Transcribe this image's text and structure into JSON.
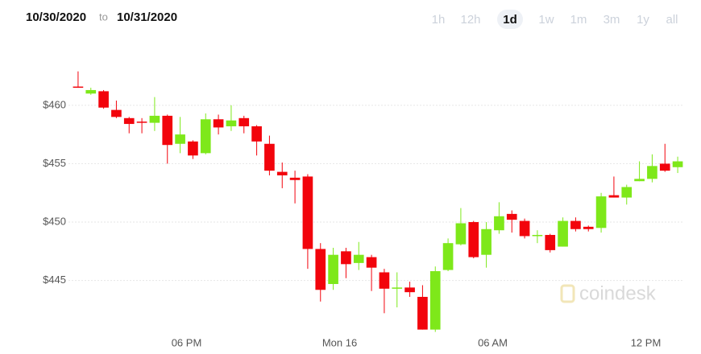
{
  "chart_data": {
    "type": "candlestick",
    "date_from": "10/30/2020",
    "date_sep": "to",
    "date_to": "10/31/2020",
    "ranges": [
      "1h",
      "12h",
      "1d",
      "1w",
      "1m",
      "3m",
      "1y",
      "all"
    ],
    "selected_range": "1d",
    "watermark": "coindesk",
    "up_color": "#7ee81a",
    "down_color": "#f2040c",
    "categories": [
      null,
      null,
      null,
      null,
      null,
      null,
      null,
      null,
      null,
      "06 PM",
      null,
      null,
      null,
      null,
      null,
      null,
      null,
      null,
      null,
      null,
      null,
      "Mon 16",
      null,
      null,
      null,
      null,
      null,
      null,
      null,
      null,
      null,
      null,
      null,
      "06 AM",
      null,
      null,
      null,
      null,
      null,
      null,
      null,
      null,
      null,
      null,
      null,
      "12 PM",
      null,
      null
    ],
    "open": [
      461.6,
      461.0,
      461.2,
      459.6,
      458.9,
      458.6,
      458.5,
      459.1,
      456.7,
      456.9,
      455.9,
      458.8,
      458.2,
      458.9,
      458.2,
      456.7,
      454.3,
      453.8,
      453.9,
      447.7,
      444.7,
      447.5,
      446.5,
      447.0,
      445.7,
      444.3,
      444.4,
      443.6,
      440.8,
      445.9,
      448.1,
      450.0,
      447.2,
      449.3,
      450.7,
      450.1,
      448.8,
      448.9,
      447.9,
      450.1,
      449.6,
      449.5,
      452.3,
      452.1,
      453.5,
      453.7,
      455.0,
      454.7
    ],
    "high": [
      462.9,
      461.5,
      461.3,
      460.4,
      459.0,
      458.9,
      460.7,
      459.2,
      459.0,
      457.0,
      459.3,
      459.2,
      460.0,
      459.1,
      458.3,
      457.4,
      455.1,
      454.4,
      454.1,
      448.2,
      447.8,
      447.8,
      448.3,
      447.2,
      446.0,
      445.7,
      444.9,
      444.6,
      446.2,
      448.6,
      451.2,
      450.1,
      450.0,
      451.7,
      451.0,
      450.3,
      449.3,
      449.0,
      450.4,
      450.4,
      449.7,
      452.5,
      453.9,
      453.2,
      455.2,
      455.8,
      456.7,
      455.6
    ],
    "low": [
      461.5,
      460.9,
      459.7,
      458.9,
      457.6,
      457.6,
      457.8,
      455.0,
      455.9,
      455.4,
      455.8,
      457.5,
      457.8,
      457.6,
      455.7,
      454.0,
      452.9,
      451.6,
      446.0,
      443.2,
      444.2,
      445.2,
      445.9,
      444.1,
      442.2,
      442.7,
      443.6,
      440.8,
      440.6,
      445.8,
      448.0,
      446.9,
      446.1,
      449.0,
      449.1,
      448.6,
      448.2,
      447.4,
      447.9,
      449.2,
      449.2,
      449.1,
      452.1,
      451.5,
      453.5,
      453.4,
      454.3,
      454.2
    ],
    "close": [
      461.5,
      461.3,
      459.8,
      459.0,
      458.4,
      458.5,
      459.1,
      456.6,
      457.5,
      455.7,
      458.8,
      458.1,
      458.7,
      458.2,
      456.9,
      454.4,
      454.0,
      453.6,
      447.7,
      444.2,
      447.2,
      446.4,
      447.2,
      446.1,
      444.3,
      444.4,
      444.0,
      440.8,
      445.8,
      448.2,
      449.9,
      447.0,
      449.4,
      450.5,
      450.2,
      448.8,
      448.9,
      447.6,
      450.1,
      449.4,
      449.4,
      452.2,
      452.1,
      453.0,
      453.7,
      454.8,
      454.4,
      455.2
    ],
    "ylim": [
      440.5,
      463.5
    ],
    "yticks": [
      {
        "value": 445,
        "label": "$445"
      },
      {
        "value": 450,
        "label": "$450"
      },
      {
        "value": 455,
        "label": "$455"
      },
      {
        "value": 460,
        "label": "$460"
      }
    ],
    "grid": true
  }
}
